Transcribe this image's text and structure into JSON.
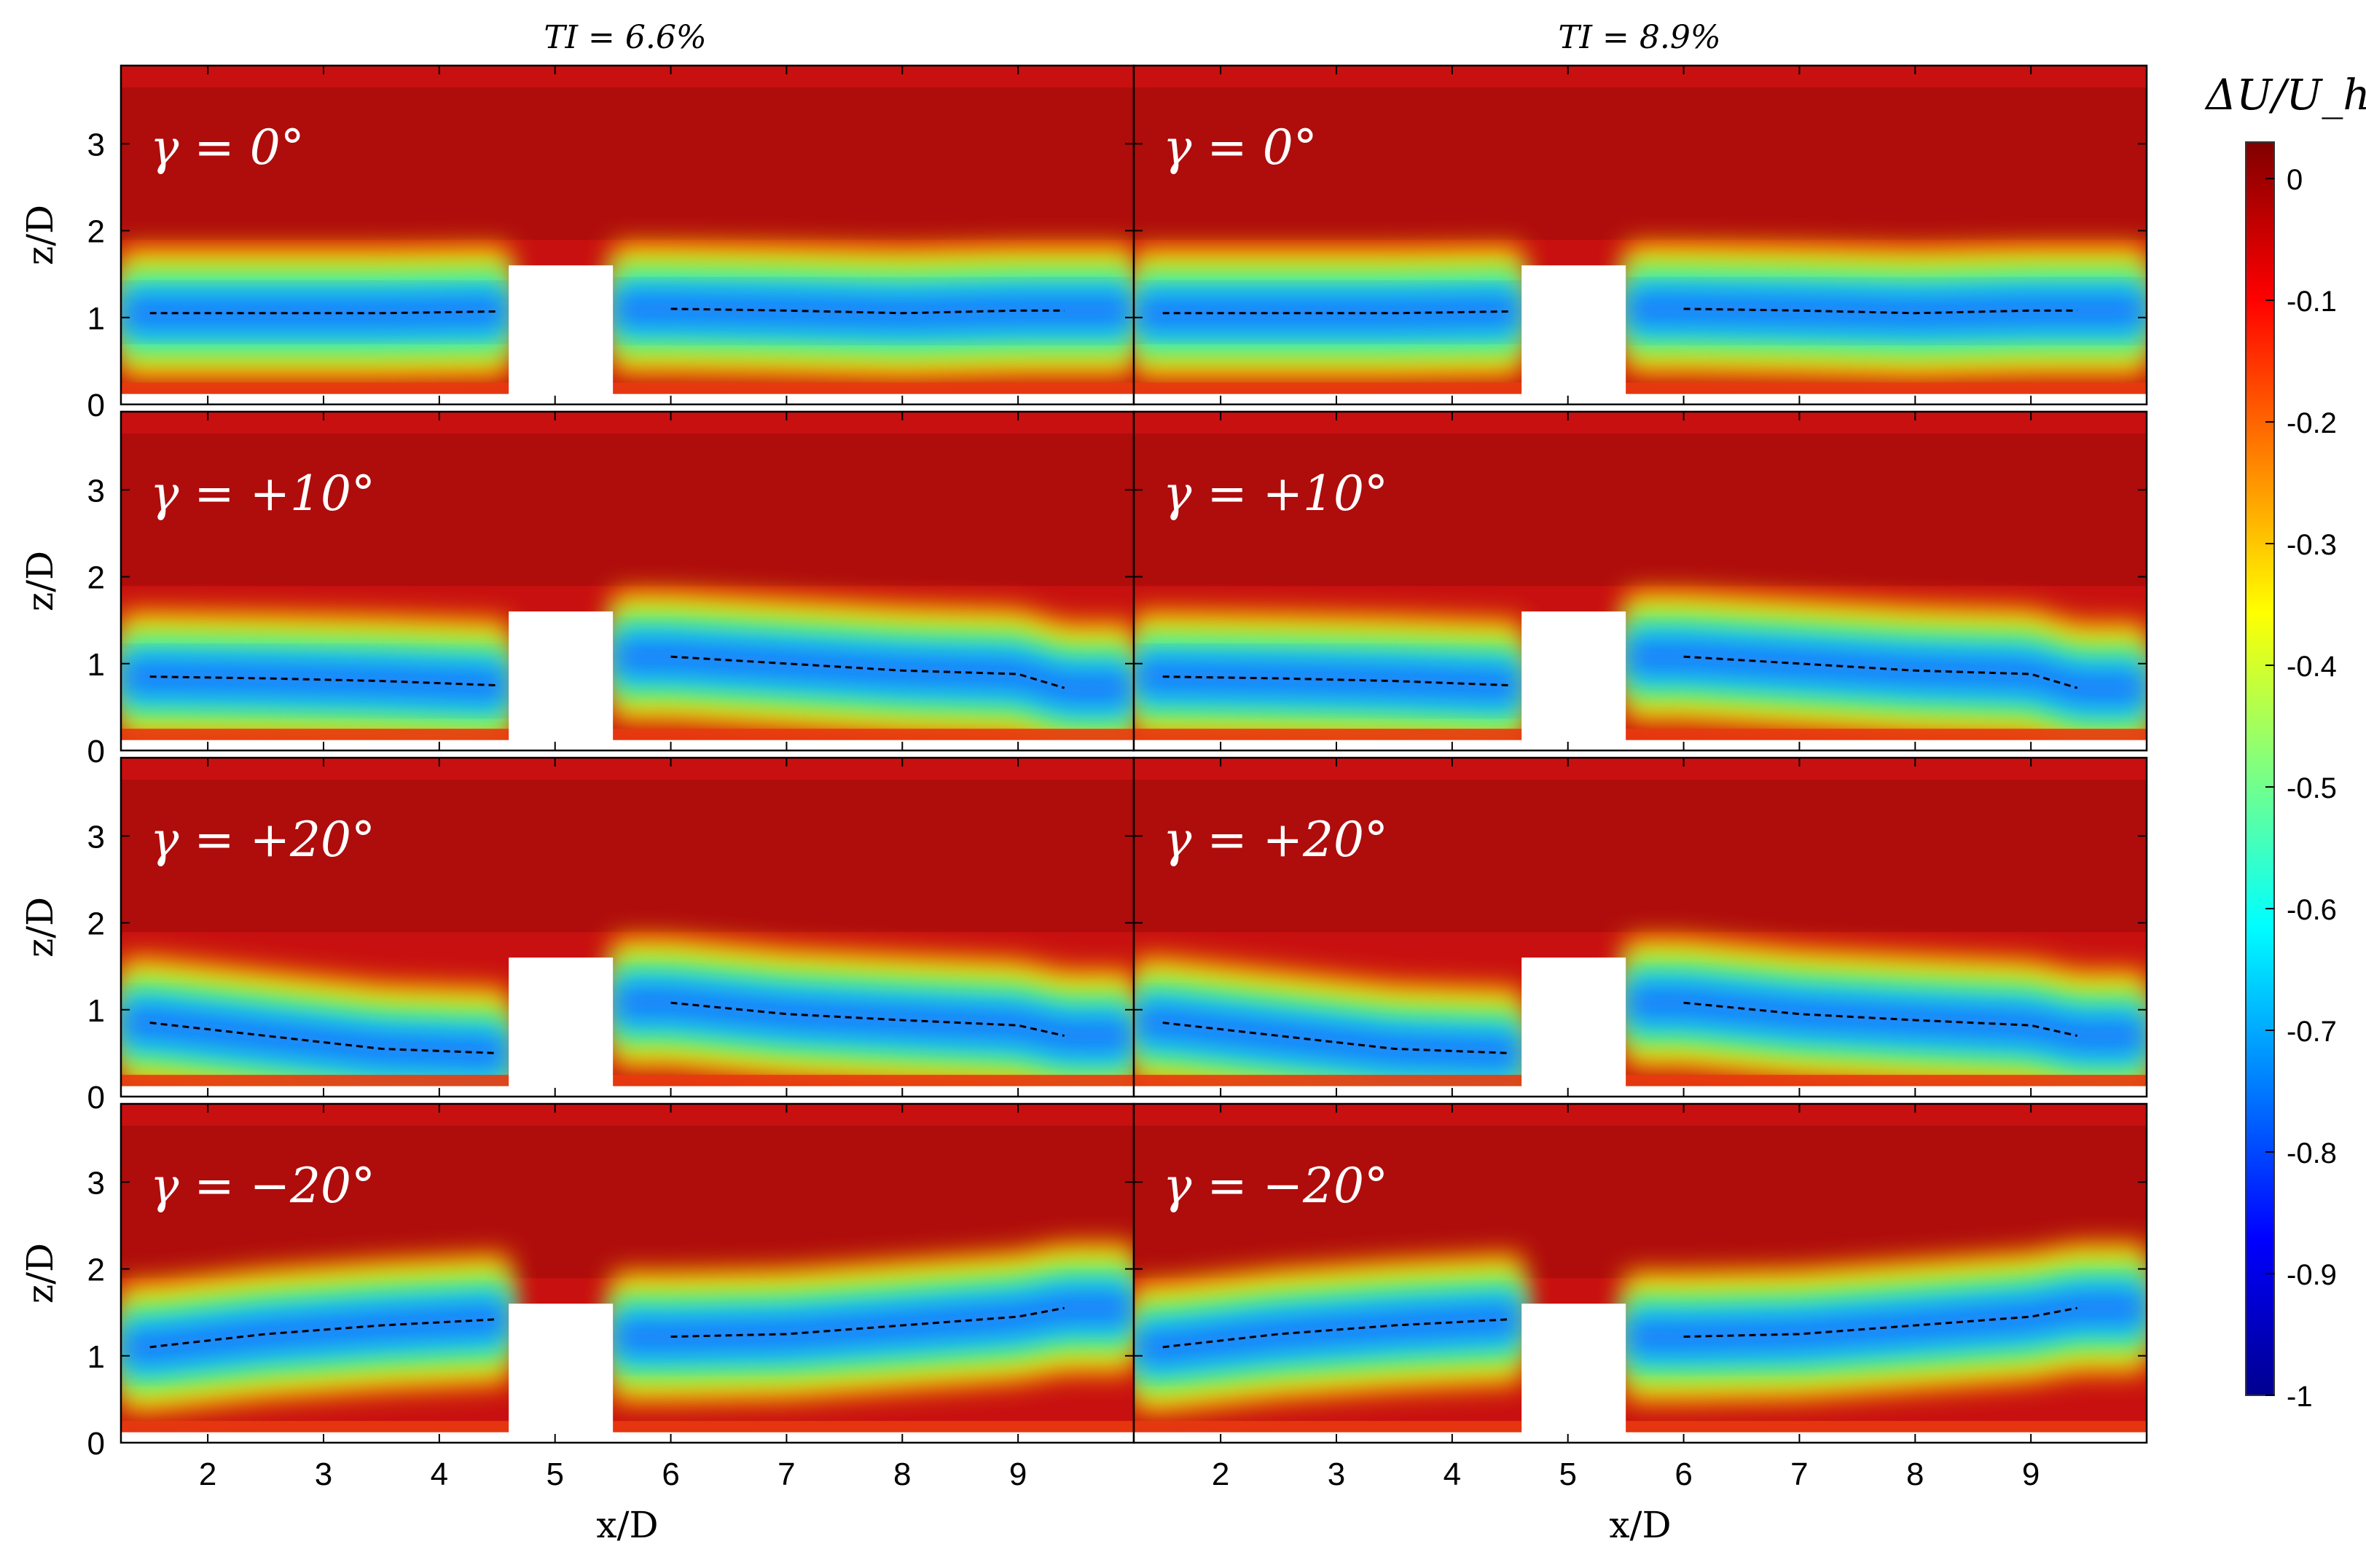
{
  "chart_data": {
    "type": "heatmap",
    "columns": [
      {
        "title": "TI = 6.6%"
      },
      {
        "title": "TI = 8.9%"
      }
    ],
    "rows": [
      {
        "label": "γ = 0°",
        "yaw": 0
      },
      {
        "label": "γ = +10°",
        "yaw": 10
      },
      {
        "label": "γ = +20°",
        "yaw": 20
      },
      {
        "label": "γ = −20°",
        "yaw": -20
      }
    ],
    "xlabel": "x/D",
    "ylabel": "z/D",
    "xlim": [
      1.25,
      10.0
    ],
    "ylim": [
      0,
      3.9
    ],
    "xticks": [
      "2",
      "3",
      "4",
      "5",
      "6",
      "7",
      "8",
      "9"
    ],
    "yticks": [
      "0",
      "1",
      "2",
      "3"
    ],
    "turbine_gap_x": [
      4.6,
      5.5
    ],
    "wake_center_lines": {
      "yaw_0": {
        "upstream": [
          [
            1.5,
            1.05
          ],
          [
            2.5,
            1.05
          ],
          [
            3.5,
            1.05
          ],
          [
            4.5,
            1.07
          ]
        ],
        "downstream": [
          [
            6.0,
            1.1
          ],
          [
            7.0,
            1.08
          ],
          [
            8.0,
            1.05
          ],
          [
            9.0,
            1.08
          ],
          [
            9.4,
            1.08
          ]
        ]
      },
      "yaw_p10": {
        "upstream": [
          [
            1.5,
            0.85
          ],
          [
            2.5,
            0.83
          ],
          [
            3.5,
            0.8
          ],
          [
            4.5,
            0.75
          ]
        ],
        "downstream": [
          [
            6.0,
            1.08
          ],
          [
            7.0,
            1.0
          ],
          [
            8.0,
            0.92
          ],
          [
            9.0,
            0.88
          ],
          [
            9.4,
            0.72
          ]
        ]
      },
      "yaw_p20": {
        "upstream": [
          [
            1.5,
            0.85
          ],
          [
            2.5,
            0.7
          ],
          [
            3.5,
            0.55
          ],
          [
            4.5,
            0.5
          ]
        ],
        "downstream": [
          [
            6.0,
            1.08
          ],
          [
            7.0,
            0.95
          ],
          [
            8.0,
            0.88
          ],
          [
            9.0,
            0.82
          ],
          [
            9.4,
            0.7
          ]
        ]
      },
      "yaw_m20": {
        "upstream": [
          [
            1.5,
            1.1
          ],
          [
            2.5,
            1.25
          ],
          [
            3.5,
            1.35
          ],
          [
            4.5,
            1.42
          ]
        ],
        "downstream": [
          [
            6.0,
            1.22
          ],
          [
            7.0,
            1.25
          ],
          [
            8.0,
            1.35
          ],
          [
            9.0,
            1.45
          ],
          [
            9.4,
            1.55
          ]
        ]
      }
    },
    "colorbar": {
      "label": "ΔU/U_h",
      "range": [
        -1,
        0.03
      ],
      "ticks": [
        "0",
        "-0.1",
        "-0.2",
        "-0.3",
        "-0.4",
        "-0.5",
        "-0.6",
        "-0.7",
        "-0.8",
        "-0.9",
        "-1"
      ],
      "colormap": "jet"
    }
  }
}
